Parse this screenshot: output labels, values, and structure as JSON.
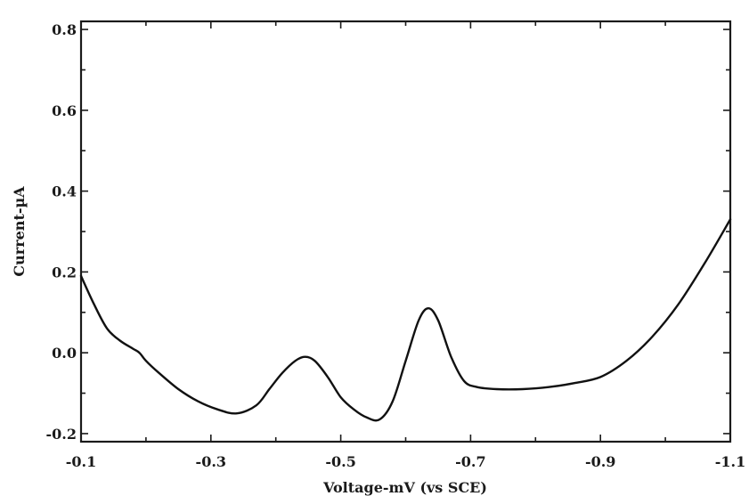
{
  "chart_data": {
    "type": "line",
    "title": "",
    "xlabel": "Voltage-mV (vs SCE)",
    "ylabel": "Current-µA",
    "xlim": [
      -0.1,
      -1.1
    ],
    "ylim": [
      -0.22,
      0.82
    ],
    "x_ticks": [
      -0.1,
      -0.3,
      -0.5,
      -0.7,
      -0.9,
      -1.1
    ],
    "x_tick_labels": [
      "-0.1",
      "-0.3",
      "-0.5",
      "-0.7",
      "-0.9",
      "-1.1"
    ],
    "y_ticks": [
      -0.2,
      0.0,
      0.2,
      0.4,
      0.6,
      0.8
    ],
    "y_tick_labels": [
      "-0.2",
      "0.0",
      "0.2",
      "0.4",
      "0.6",
      "0.8"
    ],
    "grid": false,
    "legend": "none",
    "line_color": "#111111",
    "series": [
      {
        "x": [
          -0.1,
          -0.12,
          -0.14,
          -0.16,
          -0.18,
          -0.19,
          -0.2,
          -0.22,
          -0.25,
          -0.28,
          -0.31,
          -0.34,
          -0.37,
          -0.39,
          -0.41,
          -0.43,
          -0.445,
          -0.46,
          -0.48,
          -0.5,
          -0.52,
          -0.54,
          -0.56,
          -0.58,
          -0.6,
          -0.62,
          -0.635,
          -0.65,
          -0.67,
          -0.69,
          -0.71,
          -0.74,
          -0.78,
          -0.82,
          -0.86,
          -0.9,
          -0.94,
          -0.98,
          -1.02,
          -1.06,
          -1.1
        ],
        "y": [
          0.19,
          0.12,
          0.06,
          0.03,
          0.01,
          0.0,
          -0.02,
          -0.05,
          -0.09,
          -0.12,
          -0.14,
          -0.15,
          -0.13,
          -0.09,
          -0.05,
          -0.02,
          -0.01,
          -0.02,
          -0.06,
          -0.11,
          -0.14,
          -0.16,
          -0.165,
          -0.12,
          -0.02,
          0.08,
          0.11,
          0.08,
          -0.01,
          -0.07,
          -0.085,
          -0.09,
          -0.09,
          -0.085,
          -0.075,
          -0.06,
          -0.02,
          0.04,
          0.12,
          0.22,
          0.33
        ]
      }
    ]
  }
}
